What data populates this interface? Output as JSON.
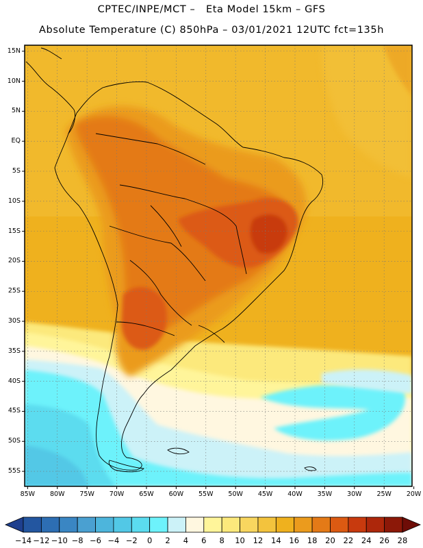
{
  "header": {
    "line1": "CPTEC/INPE/MCT –   Eta Model 15km – GFS",
    "line2": "Absolute Temperature (C) 850hPa – 03/01/2021 12UTC fct=135h"
  },
  "map": {
    "lat_labels": [
      "15N",
      "10N",
      "5N",
      "EQ",
      "5S",
      "10S",
      "15S",
      "20S",
      "25S",
      "30S",
      "35S",
      "40S",
      "45S",
      "50S",
      "55S"
    ],
    "lon_labels": [
      "85W",
      "80W",
      "75W",
      "70W",
      "65W",
      "60W",
      "55W",
      "50W",
      "45W",
      "40W",
      "35W",
      "30W",
      "25W",
      "20W"
    ],
    "lat_range": [
      16,
      -57.5
    ],
    "lon_range": [
      -85.5,
      -20.3
    ]
  },
  "colorbar": {
    "labels": [
      "-14",
      "-12",
      "-10",
      "-8",
      "-6",
      "-4",
      "-2",
      "0",
      "2",
      "4",
      "6",
      "8",
      "10",
      "12",
      "14",
      "16",
      "18",
      "20",
      "22",
      "24",
      "26",
      "28"
    ],
    "colors": [
      "#1e3f8e",
      "#2356a0",
      "#2d6eb3",
      "#3a86c3",
      "#4aa0d1",
      "#4db5dc",
      "#52c8e6",
      "#5bdcef",
      "#6df2fb",
      "#ccf2f8",
      "#fff7e0",
      "#fff59a",
      "#fce97c",
      "#f8d65f",
      "#f3c33d",
      "#efb11e",
      "#eb9b1d",
      "#e47a17",
      "#dc5a12",
      "#c83a0e",
      "#ad270b",
      "#8c1808",
      "#6e0d07"
    ]
  }
}
